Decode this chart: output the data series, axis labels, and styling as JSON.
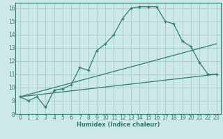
{
  "title": "",
  "xlabel": "Humidex (Indice chaleur)",
  "ylabel": "",
  "bg_color": "#cce8e8",
  "line_color": "#2e7d6e",
  "grid_color": "#aacccc",
  "xlim": [
    -0.5,
    23.5
  ],
  "ylim": [
    8,
    16.4
  ],
  "xticks": [
    0,
    1,
    2,
    3,
    4,
    5,
    6,
    7,
    8,
    9,
    10,
    11,
    12,
    13,
    14,
    15,
    16,
    17,
    18,
    19,
    20,
    21,
    22,
    23
  ],
  "yticks": [
    8,
    9,
    10,
    11,
    12,
    13,
    14,
    15,
    16
  ],
  "main_x": [
    0,
    1,
    2,
    3,
    4,
    5,
    6,
    7,
    8,
    9,
    10,
    11,
    12,
    13,
    14,
    15,
    16,
    17,
    18,
    19,
    20,
    21,
    22,
    23
  ],
  "main_y": [
    9.3,
    9.0,
    9.3,
    8.5,
    9.8,
    9.9,
    10.2,
    11.5,
    11.3,
    12.8,
    13.3,
    14.0,
    15.2,
    16.0,
    16.1,
    16.1,
    16.1,
    15.0,
    14.8,
    13.5,
    13.1,
    11.9,
    11.0,
    11.0
  ],
  "line2_x": [
    0,
    23
  ],
  "line2_y": [
    9.3,
    11.0
  ],
  "line3_x": [
    0,
    23
  ],
  "line3_y": [
    9.3,
    13.3
  ],
  "xlabel_fontsize": 6.0,
  "tick_fontsize": 5.5
}
